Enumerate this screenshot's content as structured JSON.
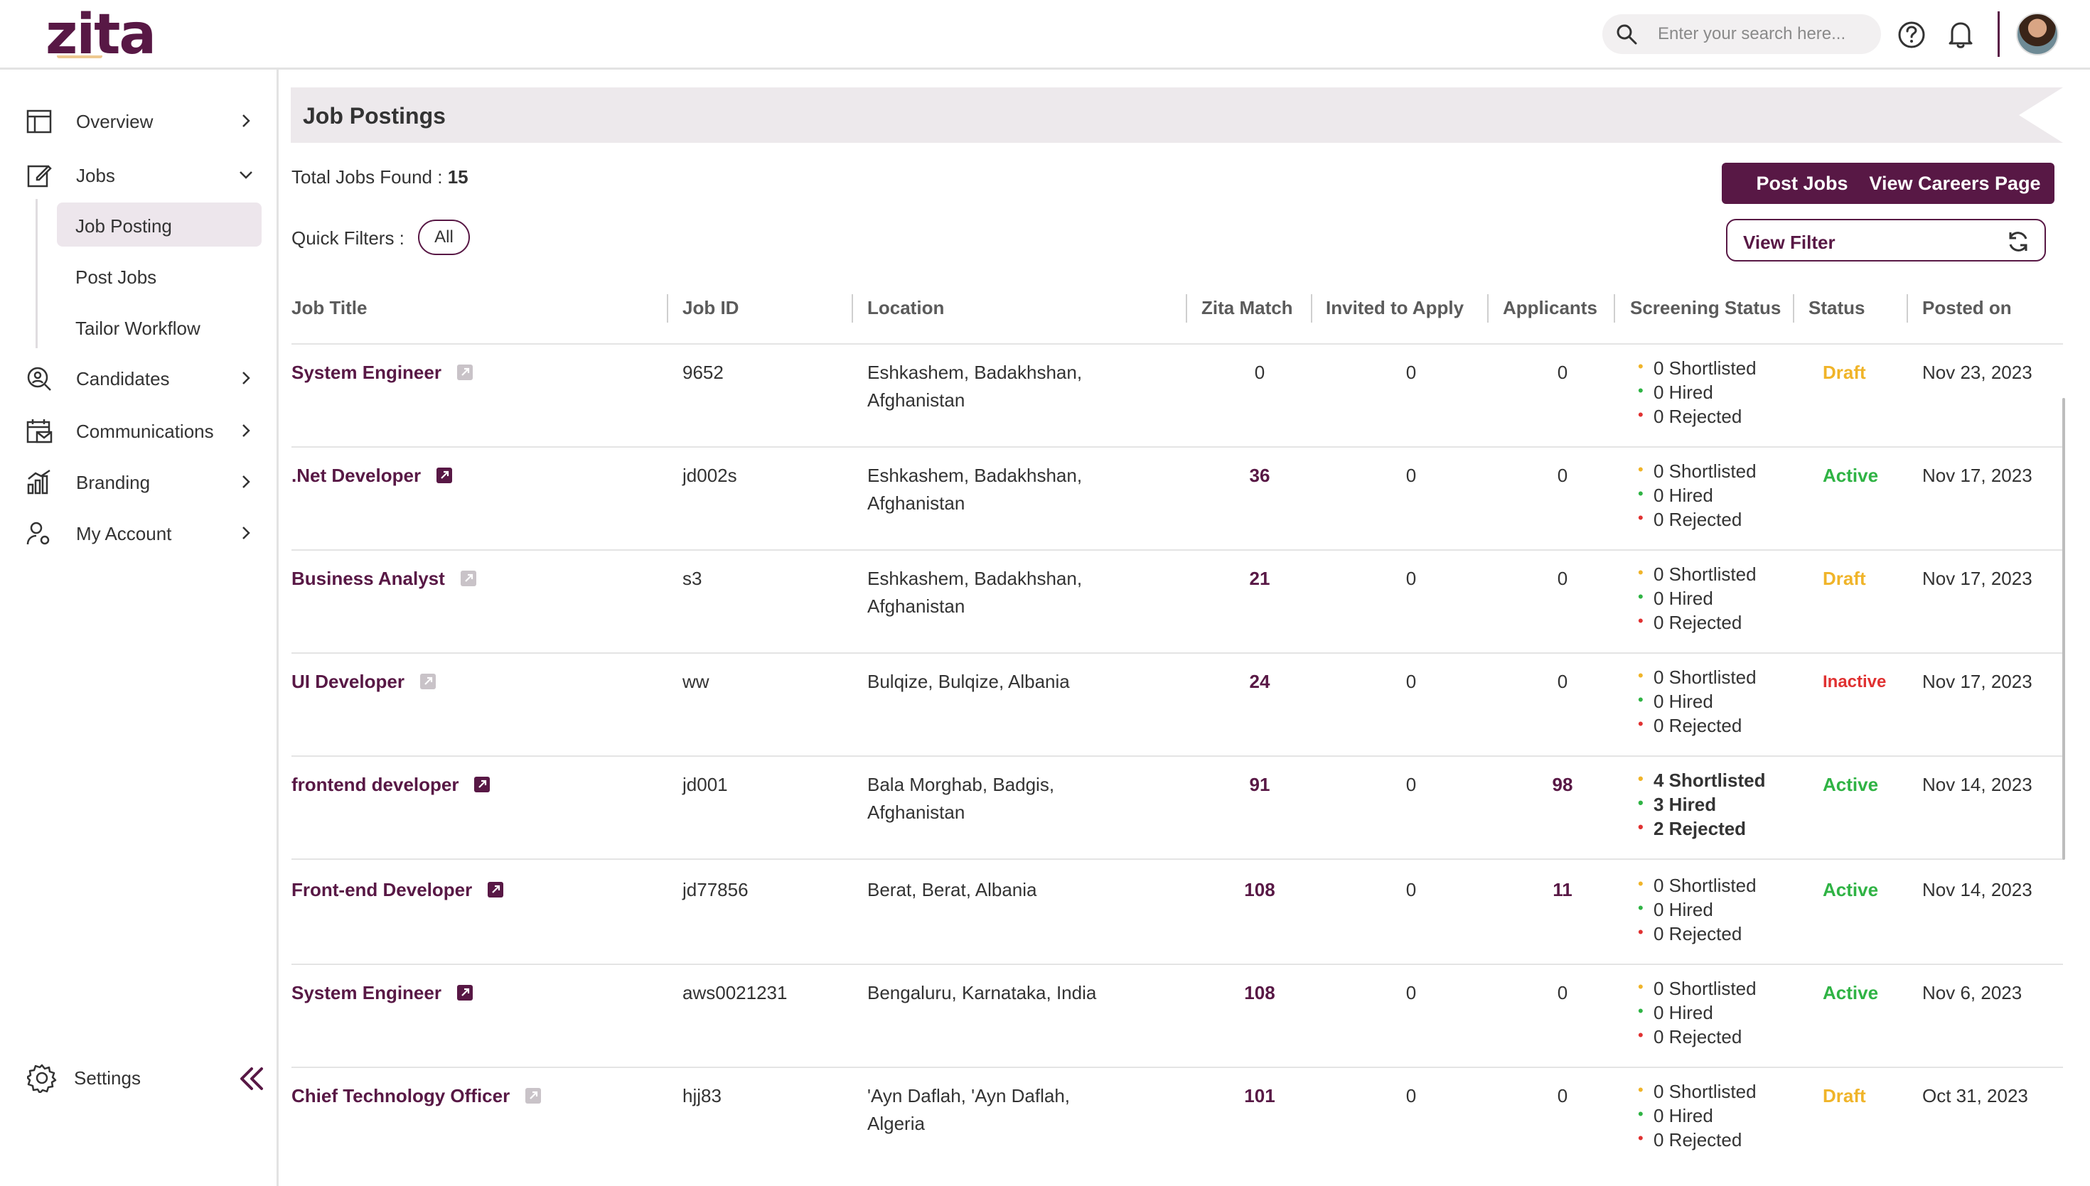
{
  "app": {
    "logo": "zita"
  },
  "search": {
    "placeholder": "Enter your search here..."
  },
  "sidebar": {
    "items": [
      {
        "label": "Overview"
      },
      {
        "label": "Jobs"
      },
      {
        "label": "Candidates"
      },
      {
        "label": "Communications"
      },
      {
        "label": "Branding"
      },
      {
        "label": "My Account"
      }
    ],
    "jobs_sub": [
      {
        "label": "Job Posting",
        "active": true
      },
      {
        "label": "Post Jobs"
      },
      {
        "label": "Tailor Workflow"
      }
    ],
    "settings_label": "Settings"
  },
  "page": {
    "title": "Job Postings",
    "total_label": "Total Jobs Found : ",
    "total_count": "15",
    "quick_filters_label": "Quick Filters :",
    "quick_filter_all": "All",
    "post_jobs_button": "Post Jobs",
    "view_careers_button": "View Careers Page",
    "view_filter_label": "View Filter"
  },
  "table": {
    "columns": [
      "Job Title",
      "Job ID",
      "Location",
      "Zita Match",
      "Invited to Apply",
      "Applicants",
      "Screening Status",
      "Status",
      "Posted on"
    ],
    "rows": [
      {
        "title": "System Engineer",
        "published": false,
        "id": "9652",
        "location": "Eshkashem, Badakhshan, Afghanistan",
        "match": "0",
        "match_bold": false,
        "invited": "0",
        "applicants": "0",
        "applicants_bold": false,
        "shortlisted": "0 Shortlisted",
        "hired": "0 Hired",
        "rejected": "0 Rejected",
        "screen_bold": false,
        "status": "Draft",
        "posted": "Nov 23, 2023"
      },
      {
        "title": ".Net Developer",
        "published": true,
        "id": "jd002s",
        "location": "Eshkashem, Badakhshan, Afghanistan",
        "match": "36",
        "match_bold": true,
        "invited": "0",
        "applicants": "0",
        "applicants_bold": false,
        "shortlisted": "0 Shortlisted",
        "hired": "0 Hired",
        "rejected": "0 Rejected",
        "screen_bold": false,
        "status": "Active",
        "posted": "Nov 17, 2023"
      },
      {
        "title": "Business Analyst",
        "published": false,
        "id": "s3",
        "location": "Eshkashem, Badakhshan, Afghanistan",
        "match": "21",
        "match_bold": true,
        "invited": "0",
        "applicants": "0",
        "applicants_bold": false,
        "shortlisted": "0 Shortlisted",
        "hired": "0 Hired",
        "rejected": "0 Rejected",
        "screen_bold": false,
        "status": "Draft",
        "posted": "Nov 17, 2023"
      },
      {
        "title": "UI Developer",
        "published": false,
        "id": "ww",
        "location": "Bulqize, Bulqize, Albania",
        "match": "24",
        "match_bold": true,
        "invited": "0",
        "applicants": "0",
        "applicants_bold": false,
        "shortlisted": "0 Shortlisted",
        "hired": "0 Hired",
        "rejected": "0 Rejected",
        "screen_bold": false,
        "status": "Inactive",
        "posted": "Nov 17, 2023"
      },
      {
        "title": "frontend developer",
        "published": true,
        "id": "jd001",
        "location": "Bala Morghab, Badgis, Afghanistan",
        "match": "91",
        "match_bold": true,
        "invited": "0",
        "applicants": "98",
        "applicants_bold": true,
        "shortlisted": "4 Shortlisted",
        "hired": "3 Hired",
        "rejected": "2 Rejected",
        "screen_bold": true,
        "status": "Active",
        "posted": "Nov 14, 2023"
      },
      {
        "title": "Front-end Developer",
        "published": true,
        "id": "jd77856",
        "location": "Berat, Berat, Albania",
        "match": "108",
        "match_bold": true,
        "invited": "0",
        "applicants": "11",
        "applicants_bold": true,
        "shortlisted": "0 Shortlisted",
        "hired": "0 Hired",
        "rejected": "0 Rejected",
        "screen_bold": false,
        "status": "Active",
        "posted": "Nov 14, 2023"
      },
      {
        "title": "System Engineer",
        "published": true,
        "id": "aws0021231",
        "location": "Bengaluru, Karnataka, India",
        "match": "108",
        "match_bold": true,
        "invited": "0",
        "applicants": "0",
        "applicants_bold": false,
        "shortlisted": "0 Shortlisted",
        "hired": "0 Hired",
        "rejected": "0 Rejected",
        "screen_bold": false,
        "status": "Active",
        "posted": "Nov 6, 2023"
      },
      {
        "title": "Chief Technology Officer",
        "published": false,
        "id": "hjj83",
        "location": "'Ayn Daflah, 'Ayn Daflah, Algeria",
        "match": "101",
        "match_bold": true,
        "invited": "0",
        "applicants": "0",
        "applicants_bold": false,
        "shortlisted": "0 Shortlisted",
        "hired": "0 Hired",
        "rejected": "0 Rejected",
        "screen_bold": false,
        "status": "Draft",
        "posted": "Oct 31, 2023"
      }
    ]
  },
  "colors": {
    "brand": "#581845",
    "draft": "#f0b429",
    "active": "#2fb344",
    "inactive": "#e03131",
    "shortlisted_dot": "#f0b429",
    "hired_dot": "#2fb344",
    "rejected_dot": "#e03131"
  }
}
